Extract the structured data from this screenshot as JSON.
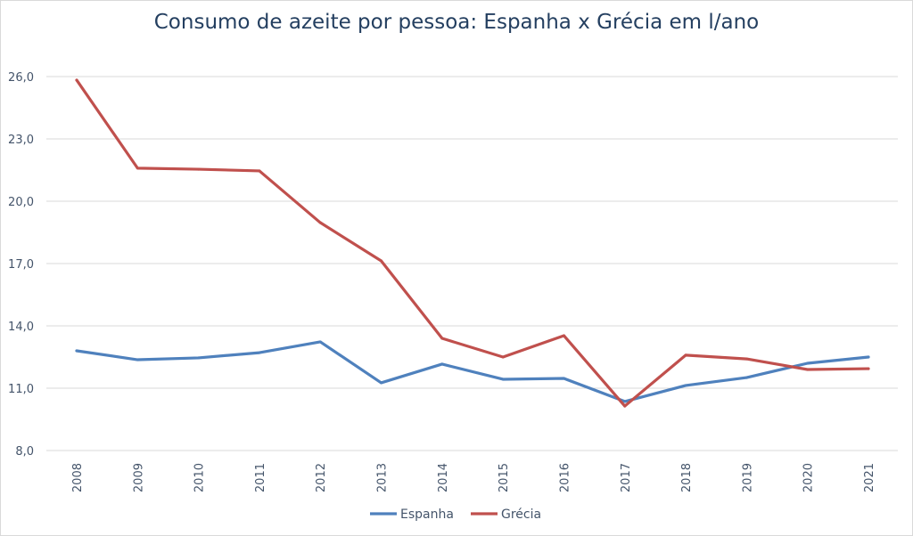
{
  "chart_data": {
    "type": "line",
    "title": "Consumo de azeite por pessoa: Espanha x Grécia em l/ano",
    "xlabel": "",
    "ylabel": "",
    "x": [
      "2008",
      "2009",
      "2010",
      "2011",
      "2012",
      "2013",
      "2014",
      "2015",
      "2016",
      "2017",
      "2018",
      "2019",
      "2020",
      "2021"
    ],
    "ylim": [
      8,
      26
    ],
    "yticks": [
      "8,0",
      "11,0",
      "14,0",
      "17,0",
      "20,0",
      "23,0",
      "26,0"
    ],
    "ytick_values": [
      8,
      11,
      14,
      17,
      20,
      23,
      26
    ],
    "grid": true,
    "legend": "bottom",
    "series": [
      {
        "name": "Espanha",
        "color": "#4f81bd",
        "values": [
          12.8,
          12.37,
          12.46,
          12.71,
          13.23,
          11.26,
          12.16,
          11.43,
          11.47,
          10.36,
          11.13,
          11.51,
          12.2,
          12.5
        ]
      },
      {
        "name": "Grécia",
        "color": "#c0504d",
        "values": [
          25.83,
          21.59,
          21.54,
          21.46,
          18.97,
          17.13,
          13.4,
          12.5,
          13.53,
          10.14,
          12.59,
          12.41,
          11.9,
          11.94
        ]
      }
    ]
  }
}
